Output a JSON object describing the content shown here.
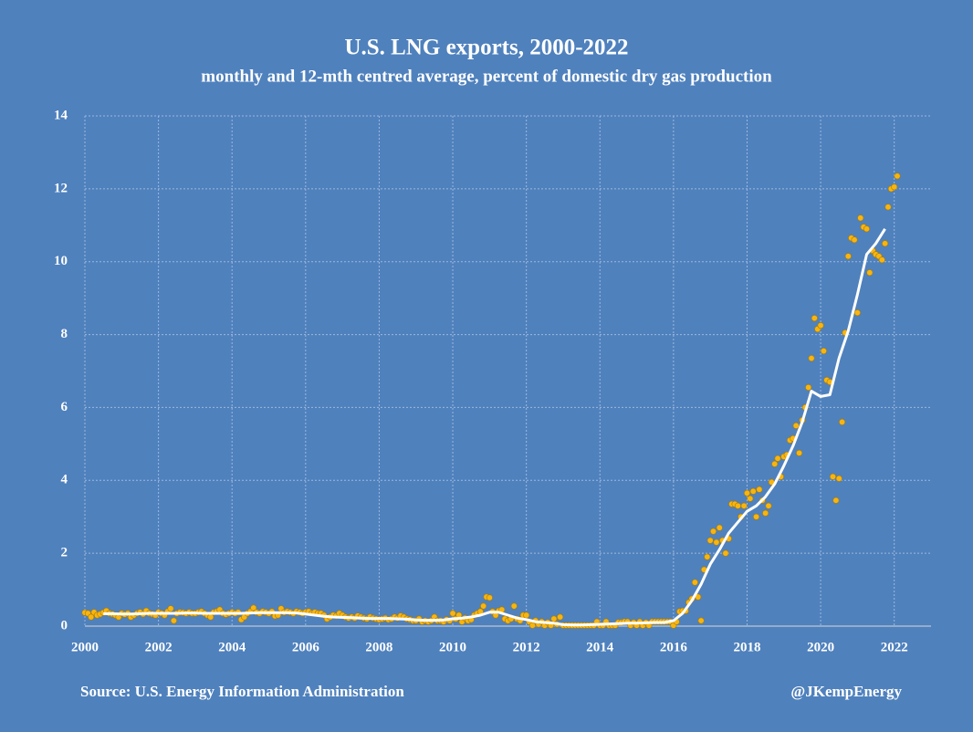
{
  "chart_data": {
    "type": "scatter",
    "title": "U.S. LNG exports, 2000-2022",
    "subtitle": "monthly and 12-mth centred average, percent of domestic dry gas production",
    "source": "Source: U.S. Energy Information Administration",
    "credit": "@JKempEnergy",
    "xlim": [
      2000,
      2023
    ],
    "xticks": [
      2000,
      2002,
      2004,
      2006,
      2008,
      2010,
      2012,
      2014,
      2016,
      2018,
      2020,
      2022
    ],
    "ylim": [
      0,
      14
    ],
    "yticks": [
      0,
      2,
      4,
      6,
      8,
      10,
      12,
      14
    ],
    "grid": true,
    "series": [
      {
        "type": "scatter",
        "color": "#f7b512",
        "x": [
          2000,
          2000.083,
          2000.167,
          2000.25,
          2000.333,
          2000.417,
          2000.5,
          2000.583,
          2000.667,
          2000.75,
          2000.833,
          2000.917,
          2001,
          2001.083,
          2001.167,
          2001.25,
          2001.333,
          2001.417,
          2001.5,
          2001.583,
          2001.667,
          2001.75,
          2001.833,
          2001.917,
          2002,
          2002.083,
          2002.167,
          2002.25,
          2002.333,
          2002.417,
          2002.5,
          2002.583,
          2002.667,
          2002.75,
          2002.833,
          2002.917,
          2003,
          2003.083,
          2003.167,
          2003.25,
          2003.333,
          2003.417,
          2003.5,
          2003.583,
          2003.667,
          2003.75,
          2003.833,
          2003.917,
          2004,
          2004.083,
          2004.167,
          2004.25,
          2004.333,
          2004.417,
          2004.5,
          2004.583,
          2004.667,
          2004.75,
          2004.833,
          2004.917,
          2005,
          2005.083,
          2005.167,
          2005.25,
          2005.333,
          2005.417,
          2005.5,
          2005.583,
          2005.667,
          2005.75,
          2005.833,
          2005.917,
          2006,
          2006.083,
          2006.167,
          2006.25,
          2006.333,
          2006.417,
          2006.5,
          2006.583,
          2006.667,
          2006.75,
          2006.833,
          2006.917,
          2007,
          2007.083,
          2007.167,
          2007.25,
          2007.333,
          2007.417,
          2007.5,
          2007.583,
          2007.667,
          2007.75,
          2007.833,
          2007.917,
          2008,
          2008.083,
          2008.167,
          2008.25,
          2008.333,
          2008.417,
          2008.5,
          2008.583,
          2008.667,
          2008.75,
          2008.833,
          2008.917,
          2009,
          2009.083,
          2009.167,
          2009.25,
          2009.333,
          2009.417,
          2009.5,
          2009.583,
          2009.667,
          2009.75,
          2009.833,
          2009.917,
          2010,
          2010.083,
          2010.167,
          2010.25,
          2010.333,
          2010.417,
          2010.5,
          2010.583,
          2010.667,
          2010.75,
          2010.833,
          2010.917,
          2011,
          2011.083,
          2011.167,
          2011.25,
          2011.333,
          2011.417,
          2011.5,
          2011.583,
          2011.667,
          2011.75,
          2011.833,
          2011.917,
          2012,
          2012.083,
          2012.167,
          2012.25,
          2012.333,
          2012.417,
          2012.5,
          2012.583,
          2012.667,
          2012.75,
          2012.833,
          2012.917,
          2013,
          2013.083,
          2013.167,
          2013.25,
          2013.333,
          2013.417,
          2013.5,
          2013.583,
          2013.667,
          2013.75,
          2013.833,
          2013.917,
          2014,
          2014.083,
          2014.167,
          2014.25,
          2014.333,
          2014.417,
          2014.5,
          2014.583,
          2014.667,
          2014.75,
          2014.833,
          2014.917,
          2015,
          2015.083,
          2015.167,
          2015.25,
          2015.333,
          2015.417,
          2015.5,
          2015.583,
          2015.667,
          2015.75,
          2015.833,
          2015.917,
          2016,
          2016.083,
          2016.167,
          2016.25,
          2016.333,
          2016.417,
          2016.5,
          2016.583,
          2016.667,
          2016.75,
          2016.833,
          2016.917,
          2017,
          2017.083,
          2017.167,
          2017.25,
          2017.333,
          2017.417,
          2017.5,
          2017.583,
          2017.667,
          2017.75,
          2017.833,
          2017.917,
          2018,
          2018.083,
          2018.167,
          2018.25,
          2018.333,
          2018.417,
          2018.5,
          2018.583,
          2018.667,
          2018.75,
          2018.833,
          2018.917,
          2019,
          2019.083,
          2019.167,
          2019.25,
          2019.333,
          2019.417,
          2019.5,
          2019.583,
          2019.667,
          2019.75,
          2019.833,
          2019.917,
          2020,
          2020.083,
          2020.167,
          2020.25,
          2020.333,
          2020.417,
          2020.5,
          2020.583,
          2020.667,
          2020.75,
          2020.833,
          2020.917,
          2021,
          2021.083,
          2021.167,
          2021.25,
          2021.333,
          2021.417,
          2021.5,
          2021.583,
          2021.667,
          2021.75,
          2021.833,
          2021.917,
          2022,
          2022.083
        ],
        "values": [
          0.37,
          0.35,
          0.25,
          0.38,
          0.3,
          0.33,
          0.37,
          0.42,
          0.35,
          0.33,
          0.3,
          0.25,
          0.35,
          0.32,
          0.35,
          0.25,
          0.3,
          0.35,
          0.38,
          0.33,
          0.42,
          0.35,
          0.33,
          0.3,
          0.38,
          0.35,
          0.3,
          0.4,
          0.48,
          0.15,
          0.35,
          0.38,
          0.37,
          0.35,
          0.38,
          0.35,
          0.35,
          0.38,
          0.4,
          0.35,
          0.3,
          0.25,
          0.38,
          0.4,
          0.45,
          0.35,
          0.32,
          0.35,
          0.38,
          0.35,
          0.38,
          0.18,
          0.25,
          0.35,
          0.4,
          0.5,
          0.38,
          0.35,
          0.4,
          0.38,
          0.35,
          0.4,
          0.28,
          0.3,
          0.48,
          0.38,
          0.4,
          0.38,
          0.35,
          0.4,
          0.38,
          0.35,
          0.38,
          0.4,
          0.35,
          0.38,
          0.35,
          0.35,
          0.3,
          0.2,
          0.25,
          0.3,
          0.28,
          0.35,
          0.3,
          0.25,
          0.22,
          0.25,
          0.22,
          0.28,
          0.25,
          0.22,
          0.2,
          0.25,
          0.22,
          0.2,
          0.18,
          0.2,
          0.22,
          0.18,
          0.2,
          0.25,
          0.22,
          0.28,
          0.25,
          0.2,
          0.18,
          0.15,
          0.15,
          0.2,
          0.12,
          0.15,
          0.12,
          0.15,
          0.25,
          0.15,
          0.15,
          0.12,
          0.18,
          0.15,
          0.35,
          0.2,
          0.3,
          0.12,
          0.22,
          0.15,
          0.18,
          0.3,
          0.35,
          0.4,
          0.55,
          0.8,
          0.78,
          0.4,
          0.3,
          0.42,
          0.45,
          0.2,
          0.15,
          0.2,
          0.55,
          0.2,
          0.15,
          0.3,
          0.3,
          0.12,
          0.02,
          0.15,
          0.05,
          0.12,
          0.02,
          0.1,
          0.02,
          0.2,
          0.05,
          0.25,
          0.02,
          0.02,
          0.02,
          0.02,
          0.02,
          0.02,
          0.02,
          0.02,
          0.02,
          0.02,
          0.02,
          0.12,
          0.02,
          0.02,
          0.12,
          0.02,
          0.02,
          0.02,
          0.1,
          0.1,
          0.12,
          0.12,
          0.02,
          0.1,
          0.02,
          0.12,
          0.02,
          0.1,
          0.02,
          0.12,
          0.12,
          0.12,
          0.12,
          0.12,
          0.12,
          0.12,
          0.02,
          0.12,
          0.4,
          0.42,
          0.42,
          0.65,
          0.75,
          1.2,
          0.8,
          0.15,
          1.55,
          1.9,
          2.35,
          2.6,
          2.3,
          2.7,
          2.35,
          2.0,
          2.4,
          3.35,
          3.35,
          3.3,
          3.0,
          3.3,
          3.65,
          3.5,
          3.7,
          3.0,
          3.75,
          3.45,
          3.1,
          3.3,
          3.95,
          4.45,
          4.6,
          4.1,
          4.65,
          4.7,
          5.1,
          5.15,
          5.5,
          4.75,
          5.65,
          6.0,
          6.55,
          7.35,
          8.45,
          8.15,
          8.25,
          7.55,
          6.75,
          6.7,
          4.1,
          3.45,
          4.05,
          5.6,
          8.05,
          10.15,
          10.65,
          10.6,
          8.6,
          11.2,
          10.95,
          10.9,
          9.7,
          10.3,
          10.2,
          10.15,
          10.05,
          10.5,
          11.5,
          12.0,
          12.05,
          12.35
        ]
      },
      {
        "type": "line",
        "color": "#ffffff",
        "x": [
          2000.5,
          2000.75,
          2001,
          2001.25,
          2001.5,
          2001.75,
          2002,
          2002.25,
          2002.5,
          2002.75,
          2003,
          2003.25,
          2003.5,
          2003.75,
          2004,
          2004.25,
          2004.5,
          2004.75,
          2005,
          2005.25,
          2005.5,
          2005.75,
          2006,
          2006.25,
          2006.5,
          2006.75,
          2007,
          2007.25,
          2007.5,
          2007.75,
          2008,
          2008.25,
          2008.5,
          2008.75,
          2009,
          2009.25,
          2009.5,
          2009.75,
          2010,
          2010.25,
          2010.5,
          2010.75,
          2011,
          2011.25,
          2011.5,
          2011.75,
          2012,
          2012.25,
          2012.5,
          2012.75,
          2013,
          2013.25,
          2013.5,
          2013.75,
          2014,
          2014.25,
          2014.5,
          2014.75,
          2015,
          2015.25,
          2015.5,
          2015.75,
          2016,
          2016.25,
          2016.5,
          2016.75,
          2017,
          2017.25,
          2017.5,
          2017.75,
          2018,
          2018.25,
          2018.5,
          2018.75,
          2019,
          2019.25,
          2019.5,
          2019.75,
          2020,
          2020.25,
          2020.5,
          2020.75,
          2021,
          2021.25,
          2021.5,
          2021.75
        ],
        "values": [
          0.34,
          0.34,
          0.33,
          0.33,
          0.34,
          0.35,
          0.35,
          0.35,
          0.35,
          0.36,
          0.36,
          0.35,
          0.35,
          0.35,
          0.35,
          0.35,
          0.36,
          0.37,
          0.37,
          0.37,
          0.37,
          0.36,
          0.33,
          0.3,
          0.27,
          0.25,
          0.24,
          0.23,
          0.22,
          0.21,
          0.21,
          0.21,
          0.2,
          0.19,
          0.17,
          0.16,
          0.16,
          0.17,
          0.2,
          0.22,
          0.25,
          0.3,
          0.38,
          0.38,
          0.3,
          0.22,
          0.18,
          0.12,
          0.1,
          0.08,
          0.04,
          0.03,
          0.03,
          0.04,
          0.05,
          0.06,
          0.07,
          0.08,
          0.08,
          0.09,
          0.1,
          0.1,
          0.15,
          0.35,
          0.7,
          1.15,
          1.7,
          2.1,
          2.55,
          2.85,
          3.15,
          3.3,
          3.55,
          3.9,
          4.4,
          4.95,
          5.6,
          6.45,
          6.3,
          6.35,
          7.35,
          8.1,
          9.1,
          10.2,
          10.5,
          10.9
        ]
      }
    ]
  }
}
